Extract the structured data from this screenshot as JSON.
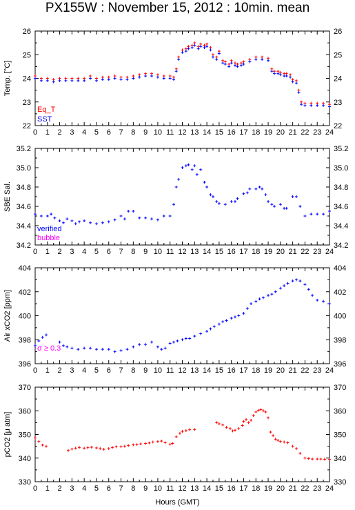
{
  "title": "PX155W : November 15, 2012 : 10min. mean",
  "xlabel": "Hours (GMT)",
  "colors": {
    "red": "#ff0000",
    "blue": "#0000ff",
    "magenta": "#ff00ff",
    "axis": "#000000"
  },
  "chart_data": [
    {
      "type": "scatter",
      "ylabel": "Temp. [°C]",
      "ylim": [
        22,
        26
      ],
      "yticks": [
        22,
        23,
        24,
        25,
        26
      ],
      "xlim": [
        0,
        24
      ],
      "legend": [
        "Eq_T",
        "SST"
      ],
      "series": [
        {
          "name": "Eq_T",
          "color": "#ff0000",
          "x": [
            0,
            0.5,
            1,
            1.5,
            2,
            2.5,
            3,
            3.5,
            4,
            4.5,
            5,
            5.5,
            6,
            6.5,
            7,
            7.5,
            8,
            8.5,
            9,
            9.5,
            10,
            10.5,
            11,
            11.3,
            11.5,
            11.7,
            12,
            12.3,
            12.5,
            12.8,
            13,
            13.3,
            13.5,
            13.8,
            14,
            14.3,
            14.5,
            14.8,
            15,
            15.3,
            15.5,
            15.8,
            16,
            16.3,
            16.5,
            16.8,
            17,
            17.5,
            18,
            18.5,
            19,
            19.3,
            19.5,
            19.8,
            20,
            20.3,
            20.5,
            20.8,
            21,
            21.3,
            21.5,
            21.7,
            22,
            22.5,
            23,
            23.5,
            24
          ],
          "y": [
            24.1,
            24.0,
            24.0,
            23.95,
            24.0,
            24.0,
            24.0,
            24.0,
            24.0,
            24.1,
            24.0,
            24.05,
            24.05,
            24.1,
            24.05,
            24.05,
            24.1,
            24.15,
            24.2,
            24.2,
            24.15,
            24.1,
            24.1,
            24.05,
            24.4,
            24.9,
            25.2,
            25.25,
            25.35,
            25.4,
            25.5,
            25.35,
            25.45,
            25.4,
            25.45,
            25.3,
            25.0,
            24.9,
            25.15,
            24.75,
            24.7,
            24.6,
            24.75,
            24.65,
            24.6,
            24.65,
            24.7,
            24.8,
            24.9,
            24.9,
            24.85,
            24.4,
            24.3,
            24.3,
            24.25,
            24.2,
            24.2,
            24.15,
            23.95,
            23.9,
            23.5,
            23.0,
            22.95,
            22.95,
            22.95,
            22.95,
            22.9
          ]
        },
        {
          "name": "SST",
          "color": "#0000ff",
          "x": [
            0,
            0.5,
            1,
            1.5,
            2,
            2.5,
            3,
            3.5,
            4,
            4.5,
            5,
            5.5,
            6,
            6.5,
            7,
            7.5,
            8,
            8.5,
            9,
            9.5,
            10,
            10.5,
            11,
            11.3,
            11.5,
            11.7,
            12,
            12.3,
            12.5,
            12.8,
            13,
            13.3,
            13.5,
            13.8,
            14,
            14.3,
            14.5,
            14.8,
            15,
            15.3,
            15.5,
            15.8,
            16,
            16.3,
            16.5,
            16.8,
            17,
            17.5,
            18,
            18.5,
            19,
            19.3,
            19.5,
            19.8,
            20,
            20.3,
            20.5,
            20.8,
            21,
            21.3,
            21.5,
            21.7,
            22,
            22.5,
            23,
            23.5,
            24
          ],
          "y": [
            24.0,
            23.9,
            23.9,
            23.85,
            23.9,
            23.9,
            23.9,
            23.9,
            23.9,
            24.0,
            23.9,
            23.95,
            23.95,
            24.0,
            23.95,
            23.95,
            24.0,
            24.05,
            24.1,
            24.1,
            24.05,
            24.0,
            24.0,
            23.95,
            24.3,
            24.8,
            25.1,
            25.15,
            25.25,
            25.3,
            25.4,
            25.25,
            25.35,
            25.3,
            25.35,
            25.2,
            24.9,
            24.8,
            25.05,
            24.65,
            24.6,
            24.5,
            24.65,
            24.55,
            24.5,
            24.55,
            24.6,
            24.7,
            24.8,
            24.8,
            24.75,
            24.3,
            24.2,
            24.2,
            24.15,
            24.1,
            24.1,
            24.05,
            23.85,
            23.8,
            23.4,
            22.9,
            22.85,
            22.85,
            22.85,
            22.85,
            22.8
          ]
        }
      ]
    },
    {
      "type": "scatter",
      "ylabel": "SBE Sal.",
      "ylim": [
        34.2,
        35.2
      ],
      "yticks": [
        34.2,
        34.4,
        34.6,
        34.8,
        35,
        35.2
      ],
      "xlim": [
        0,
        24
      ],
      "legend": [
        "verified",
        "bubble"
      ],
      "series": [
        {
          "name": "verified",
          "color": "#0000ff",
          "x": [
            0,
            0.5,
            1,
            1.3,
            1.6,
            2,
            2.3,
            2.6,
            3,
            3.3,
            3.6,
            4,
            4.5,
            5,
            5.5,
            6,
            6.5,
            7,
            7.3,
            7.6,
            8,
            8.5,
            9,
            9.5,
            10,
            10.5,
            11,
            11.3,
            11.5,
            11.7,
            12,
            12.3,
            12.5,
            12.8,
            13,
            13.2,
            13.5,
            13.8,
            14,
            14.3,
            14.5,
            14.8,
            15,
            15.5,
            16,
            16.3,
            16.5,
            17,
            17.3,
            17.5,
            18,
            18.3,
            18.5,
            18.8,
            19,
            19.3,
            19.5,
            20,
            20.3,
            20.5,
            21,
            21.3,
            21.6,
            22,
            22.5,
            23,
            23.5,
            24
          ],
          "y": [
            34.52,
            34.5,
            34.5,
            34.52,
            34.48,
            34.45,
            34.43,
            34.47,
            34.45,
            34.42,
            34.44,
            34.45,
            34.43,
            34.42,
            34.43,
            34.44,
            34.46,
            34.5,
            34.47,
            34.55,
            34.55,
            34.48,
            34.48,
            34.47,
            34.46,
            34.5,
            34.5,
            34.62,
            34.8,
            34.88,
            35.0,
            35.02,
            35.03,
            34.98,
            35.02,
            34.93,
            34.98,
            34.85,
            34.8,
            34.72,
            34.7,
            34.65,
            34.63,
            34.62,
            34.65,
            34.65,
            34.68,
            34.73,
            34.74,
            34.78,
            34.78,
            34.8,
            34.78,
            34.72,
            34.65,
            34.62,
            34.6,
            34.62,
            34.58,
            34.58,
            34.7,
            34.7,
            34.6,
            34.5,
            34.52,
            34.52,
            34.52,
            34.55
          ]
        }
      ]
    },
    {
      "type": "scatter",
      "ylabel": "Air xCO2 [ppm]",
      "ylim": [
        396,
        404
      ],
      "yticks": [
        396,
        398,
        400,
        402,
        404
      ],
      "xlim": [
        0,
        24
      ],
      "legend": [
        "σ ≥ 0.3"
      ],
      "series": [
        {
          "name": "",
          "color": "#0000ff",
          "x": [
            0,
            0.3,
            0.6,
            0.9,
            2,
            2.3,
            2.6,
            3,
            3.5,
            4,
            4.5,
            5,
            5.5,
            6,
            6.5,
            7,
            7.5,
            8,
            8.5,
            9,
            9.5,
            10,
            10.3,
            10.6,
            11,
            11.3,
            11.6,
            12,
            12.3,
            12.6,
            13,
            13.5,
            14,
            14.3,
            14.6,
            15,
            15.3,
            15.6,
            16,
            16.3,
            16.6,
            17,
            17.3,
            17.6,
            18,
            18.3,
            18.6,
            19,
            19.3,
            19.6,
            20,
            20.3,
            20.6,
            21,
            21.3,
            21.6,
            22,
            22.3,
            22.6,
            23,
            23.5,
            24
          ],
          "y": [
            397.5,
            397.9,
            398.2,
            398.4,
            397.8,
            397.5,
            397.4,
            397.3,
            397.2,
            397.3,
            397.3,
            397.2,
            397.2,
            397.2,
            397.0,
            397.1,
            397.2,
            397.4,
            397.6,
            397.6,
            397.8,
            397.4,
            397.2,
            397.3,
            397.7,
            397.8,
            397.9,
            398.0,
            398.1,
            398.1,
            398.3,
            398.5,
            398.7,
            398.9,
            399.1,
            399.3,
            399.5,
            399.6,
            399.8,
            399.9,
            400.0,
            400.2,
            400.6,
            401.0,
            401.2,
            401.4,
            401.5,
            401.7,
            401.8,
            402.0,
            402.3,
            402.5,
            402.7,
            402.9,
            403.0,
            402.9,
            402.6,
            402.2,
            401.7,
            401.3,
            401.2,
            401.0
          ]
        }
      ]
    },
    {
      "type": "scatter",
      "ylabel": "pCO2 [μ atm]",
      "ylim": [
        330,
        370
      ],
      "yticks": [
        330,
        340,
        350,
        360,
        370
      ],
      "xlim": [
        0,
        24
      ],
      "legend": [],
      "series": [
        {
          "name": "",
          "color": "#ff0000",
          "x": [
            0,
            0.3,
            0.6,
            0.9,
            2.7,
            3,
            3.3,
            3.6,
            4,
            4.3,
            4.6,
            5,
            5.3,
            5.6,
            6,
            6.3,
            6.6,
            7,
            7.3,
            7.6,
            8,
            8.3,
            8.6,
            9,
            9.3,
            9.6,
            10,
            10.3,
            10.6,
            11,
            11.2,
            11.5,
            11.8,
            12,
            12.3,
            12.6,
            13,
            14.8,
            15,
            15.3,
            15.6,
            15.9,
            16.1,
            16.3,
            16.6,
            16.9,
            17,
            17.2,
            17.4,
            17.6,
            17.8,
            18,
            18.2,
            18.4,
            18.6,
            18.8,
            19,
            19.2,
            19.4,
            19.6,
            19.8,
            20,
            20.3,
            20.6,
            21,
            21.3,
            21.6,
            22,
            22.3,
            22.6,
            23,
            23.3,
            23.6,
            24
          ],
          "y": [
            348.5,
            347,
            345.5,
            345,
            343.2,
            343.8,
            344.2,
            344.5,
            344.2,
            344.4,
            344.6,
            344.3,
            344.0,
            343.7,
            344.0,
            344.5,
            344.8,
            344.8,
            345.0,
            345.3,
            345.6,
            345.7,
            346.0,
            346.2,
            346.4,
            346.8,
            347.0,
            347.2,
            346.5,
            345.9,
            346.2,
            349.0,
            350.5,
            351.3,
            351.6,
            352.0,
            352.1,
            355.0,
            354.5,
            354.0,
            353.0,
            352.5,
            351.5,
            351.8,
            352.5,
            353.8,
            355.5,
            356.3,
            355.0,
            356.0,
            358.0,
            359.5,
            360.2,
            360.5,
            360.0,
            359.5,
            357.0,
            351.0,
            349.5,
            348.0,
            347.5,
            347.0,
            346.8,
            346.5,
            345.0,
            344.0,
            342.0,
            340.0,
            339.8,
            339.6,
            339.6,
            339.6,
            339.5,
            339.5
          ]
        }
      ]
    }
  ],
  "x_ticks": [
    "0",
    "1",
    "2",
    "3",
    "4",
    "5",
    "6",
    "7",
    "8",
    "9",
    "10",
    "11",
    "12",
    "13",
    "14",
    "15",
    "16",
    "17",
    "18",
    "19",
    "20",
    "21",
    "22",
    "23",
    "24"
  ]
}
